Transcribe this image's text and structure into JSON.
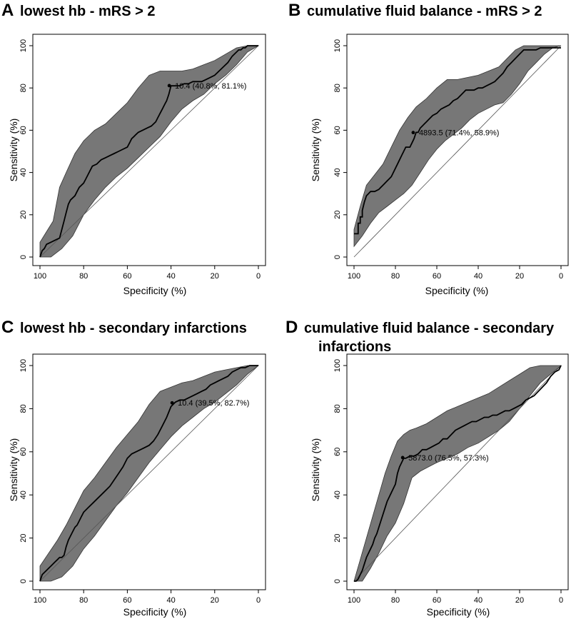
{
  "figure": {
    "panels": [
      {
        "letter": "A",
        "title_lines": [
          "lowest hb - mRS > 2"
        ]
      },
      {
        "letter": "B",
        "title_lines": [
          "cumulative fluid balance - mRS > 2"
        ]
      },
      {
        "letter": "C",
        "title_lines": [
          "lowest hb - secondary infarctions"
        ]
      },
      {
        "letter": "D",
        "title_lines": [
          "cumulative fluid balance - secondary",
          "infarctions"
        ]
      }
    ]
  },
  "chart_data": [
    {
      "type": "line",
      "panel": "A",
      "title": "lowest hb - mRS > 2",
      "xlabel": "Specificity (%)",
      "ylabel": "Sensitivity (%)",
      "xlim": [
        100,
        0
      ],
      "ylim": [
        0,
        100
      ],
      "xticks": [
        100,
        80,
        60,
        40,
        20,
        0
      ],
      "yticks": [
        0,
        20,
        40,
        60,
        80,
        100
      ],
      "grid": false,
      "series": [
        {
          "name": "ROC",
          "x": [
            100,
            99,
            98,
            97,
            95,
            93,
            91,
            90,
            89,
            88,
            87,
            86,
            84,
            83,
            82,
            80,
            79,
            78,
            77,
            76,
            74,
            73,
            72,
            70,
            68,
            66,
            64,
            62,
            60,
            59,
            58,
            57,
            56,
            55,
            53,
            51,
            49,
            47,
            46,
            45,
            44,
            43,
            42,
            41,
            40,
            39,
            38,
            36,
            34,
            32,
            30,
            28,
            26,
            24,
            22,
            20,
            18,
            16,
            14,
            12,
            10,
            9,
            8,
            7,
            6,
            5,
            4,
            3,
            2,
            1,
            0
          ],
          "y": [
            0,
            3,
            4,
            6,
            7,
            8,
            9,
            13,
            17,
            21,
            25,
            27,
            29,
            31,
            33,
            35,
            37,
            39,
            41,
            43,
            44,
            45,
            46,
            47,
            48,
            49,
            50,
            51,
            52,
            54,
            56,
            57,
            58,
            59,
            60,
            61,
            62,
            64,
            66,
            68,
            70,
            72,
            74,
            77,
            81,
            81,
            81,
            81,
            82,
            82,
            83,
            83,
            83,
            84,
            85,
            86,
            88,
            90,
            92,
            95,
            97,
            98,
            98,
            99,
            99,
            100,
            100,
            100,
            100,
            100,
            100
          ]
        },
        {
          "name": "CI upper",
          "x": [
            100,
            97,
            94,
            91,
            88,
            84,
            80,
            75,
            70,
            65,
            60,
            55,
            50,
            45,
            40,
            35,
            30,
            25,
            20,
            15,
            10,
            5,
            0
          ],
          "y": [
            7,
            12,
            17,
            33,
            40,
            49,
            55,
            60,
            63,
            68,
            73,
            80,
            86,
            88,
            88,
            88,
            89,
            91,
            93,
            96,
            99,
            100,
            100
          ]
        },
        {
          "name": "CI lower",
          "x": [
            100,
            95,
            90,
            85,
            80,
            75,
            70,
            65,
            60,
            55,
            50,
            45,
            40,
            35,
            30,
            25,
            20,
            15,
            10,
            5,
            0
          ],
          "y": [
            0,
            0,
            4,
            10,
            20,
            27,
            33,
            38,
            42,
            47,
            52,
            57,
            64,
            70,
            74,
            77,
            82,
            86,
            91,
            97,
            100
          ]
        },
        {
          "name": "chance",
          "x": [
            100,
            0
          ],
          "y": [
            0,
            100
          ]
        }
      ],
      "best_threshold": {
        "specificity": 40.8,
        "sensitivity": 81.1,
        "label": "10.4 (40.8%, 81.1%)"
      }
    },
    {
      "type": "line",
      "panel": "B",
      "title": "cumulative fluid balance - mRS > 2",
      "xlabel": "Specificity (%)",
      "ylabel": "Sensitivity (%)",
      "xlim": [
        100,
        0
      ],
      "ylim": [
        0,
        100
      ],
      "xticks": [
        100,
        80,
        60,
        40,
        20,
        0
      ],
      "yticks": [
        0,
        20,
        40,
        60,
        80,
        100
      ],
      "grid": false,
      "series": [
        {
          "name": "ROC",
          "x": [
            100,
            100,
            98,
            98,
            97,
            97,
            96,
            96,
            95,
            94,
            93,
            92,
            91,
            90,
            88,
            87,
            86,
            85,
            84,
            83,
            82,
            81,
            80,
            79,
            78,
            77,
            76,
            75,
            74,
            73,
            72,
            71,
            70,
            69,
            68,
            67,
            66,
            65,
            64,
            62,
            60,
            58,
            56,
            54,
            52,
            50,
            48,
            46,
            44,
            42,
            40,
            38,
            36,
            34,
            32,
            30,
            28,
            26,
            24,
            22,
            20,
            18,
            16,
            14,
            12,
            10,
            8,
            6,
            4,
            2,
            0
          ],
          "y": [
            11,
            11,
            11,
            16,
            16,
            19,
            19,
            22,
            26,
            29,
            30,
            31,
            31,
            31,
            32,
            33,
            34,
            35,
            36,
            37,
            38,
            40,
            42,
            44,
            46,
            48,
            50,
            52,
            52,
            52,
            54,
            56,
            59,
            59,
            61,
            62,
            63,
            64,
            65,
            67,
            68,
            70,
            71,
            72,
            74,
            75,
            77,
            79,
            79,
            79,
            80,
            80,
            81,
            82,
            83,
            85,
            87,
            90,
            92,
            94,
            96,
            98,
            98,
            98,
            98,
            99,
            99,
            99,
            99,
            99,
            99
          ]
        },
        {
          "name": "CI upper",
          "x": [
            100,
            97,
            94,
            90,
            86,
            82,
            78,
            74,
            70,
            65,
            60,
            55,
            50,
            45,
            40,
            35,
            30,
            25,
            22,
            18,
            14,
            10,
            5,
            0
          ],
          "y": [
            13,
            24,
            34,
            39,
            44,
            52,
            60,
            66,
            71,
            75,
            80,
            84,
            84,
            85,
            86,
            88,
            90,
            95,
            98,
            100,
            100,
            100,
            100,
            100
          ]
        },
        {
          "name": "CI lower",
          "x": [
            100,
            96,
            92,
            88,
            84,
            80,
            76,
            72,
            68,
            64,
            60,
            56,
            52,
            48,
            44,
            40,
            36,
            32,
            28,
            24,
            20,
            16,
            12,
            8,
            4,
            0
          ],
          "y": [
            5,
            10,
            16,
            21,
            24,
            27,
            30,
            34,
            40,
            46,
            51,
            55,
            58,
            61,
            65,
            68,
            70,
            72,
            73,
            77,
            82,
            88,
            92,
            96,
            99,
            100
          ]
        },
        {
          "name": "chance",
          "x": [
            100,
            0
          ],
          "y": [
            0,
            100
          ]
        }
      ],
      "best_threshold": {
        "specificity": 71.4,
        "sensitivity": 58.9,
        "label": "4893.5 (71.4%, 58.9%)"
      }
    },
    {
      "type": "line",
      "panel": "C",
      "title": "lowest hb - secondary infarctions",
      "xlabel": "Specificity (%)",
      "ylabel": "Sensitivity (%)",
      "xlim": [
        100,
        0
      ],
      "ylim": [
        0,
        100
      ],
      "xticks": [
        100,
        80,
        60,
        40,
        20,
        0
      ],
      "yticks": [
        0,
        20,
        40,
        60,
        80,
        100
      ],
      "grid": false,
      "series": [
        {
          "name": "ROC",
          "x": [
            100,
            99,
            98,
            97,
            96,
            95,
            94,
            93,
            92,
            91,
            90,
            89,
            88,
            87,
            86,
            85,
            84,
            83,
            82,
            81,
            80,
            78,
            76,
            74,
            72,
            70,
            68,
            66,
            64,
            62,
            60,
            58,
            56,
            54,
            52,
            50,
            48,
            46,
            44,
            42,
            40,
            38,
            36,
            34,
            32,
            30,
            28,
            26,
            24,
            22,
            20,
            18,
            16,
            14,
            12,
            10,
            8,
            6,
            4,
            2,
            0
          ],
          "y": [
            0,
            3,
            4,
            5,
            6,
            7,
            8,
            9,
            10,
            11,
            11,
            12,
            16,
            19,
            21,
            23,
            25,
            26,
            28,
            30,
            32,
            34,
            36,
            38,
            40,
            42,
            44,
            47,
            50,
            53,
            57,
            59,
            60,
            61,
            62,
            63,
            65,
            68,
            72,
            76,
            81,
            83,
            84,
            84,
            85,
            86,
            87,
            88,
            89,
            91,
            92,
            93,
            94,
            95,
            97,
            98,
            99,
            99,
            100,
            100,
            100
          ]
        },
        {
          "name": "CI upper",
          "x": [
            100,
            96,
            92,
            88,
            84,
            80,
            75,
            70,
            65,
            60,
            55,
            50,
            45,
            40,
            35,
            30,
            25,
            20,
            15,
            10,
            5,
            0
          ],
          "y": [
            7,
            13,
            19,
            26,
            34,
            42,
            48,
            55,
            62,
            68,
            74,
            82,
            88,
            90,
            92,
            93,
            95,
            97,
            98,
            99,
            100,
            100
          ]
        },
        {
          "name": "CI lower",
          "x": [
            100,
            95,
            90,
            85,
            80,
            75,
            70,
            65,
            60,
            55,
            50,
            45,
            40,
            35,
            30,
            25,
            20,
            15,
            10,
            5,
            0
          ],
          "y": [
            0,
            0,
            2,
            7,
            15,
            21,
            28,
            35,
            41,
            48,
            55,
            61,
            67,
            72,
            76,
            80,
            83,
            87,
            91,
            96,
            100
          ]
        },
        {
          "name": "chance",
          "x": [
            100,
            0
          ],
          "y": [
            0,
            100
          ]
        }
      ],
      "best_threshold": {
        "specificity": 39.5,
        "sensitivity": 82.7,
        "label": "10.4 (39.5%, 82.7%)"
      }
    },
    {
      "type": "line",
      "panel": "D",
      "title": "cumulative fluid balance - secondary infarctions",
      "xlabel": "Specificity (%)",
      "ylabel": "Sensitivity (%)",
      "xlim": [
        100,
        0
      ],
      "ylim": [
        0,
        100
      ],
      "xticks": [
        100,
        80,
        60,
        40,
        20,
        0
      ],
      "yticks": [
        0,
        20,
        40,
        60,
        80,
        100
      ],
      "grid": false,
      "series": [
        {
          "name": "ROC",
          "x": [
            100,
            99,
            98,
            97,
            96,
            95,
            94,
            93,
            92,
            91,
            90,
            89,
            88,
            87,
            86,
            85,
            84,
            83,
            82,
            81,
            80,
            79,
            78,
            77,
            76,
            75,
            73,
            71,
            69,
            67,
            65,
            63,
            61,
            59,
            57,
            55,
            53,
            51,
            49,
            47,
            45,
            43,
            41,
            39,
            37,
            35,
            33,
            31,
            29,
            27,
            25,
            23,
            21,
            19,
            17,
            15,
            13,
            11,
            9,
            7,
            5,
            3,
            1,
            0
          ],
          "y": [
            0,
            0,
            1,
            3,
            5,
            8,
            11,
            13,
            15,
            17,
            20,
            22,
            25,
            28,
            31,
            34,
            37,
            39,
            41,
            43,
            45,
            50,
            53,
            55,
            57,
            57,
            58,
            58,
            59,
            61,
            61,
            62,
            63,
            64,
            66,
            66,
            68,
            70,
            71,
            72,
            73,
            74,
            74,
            75,
            76,
            76,
            77,
            77,
            78,
            79,
            79,
            80,
            81,
            82,
            84,
            85,
            86,
            88,
            90,
            92,
            95,
            97,
            98,
            100
          ]
        },
        {
          "name": "CI upper",
          "x": [
            100,
            97,
            94,
            91,
            88,
            85,
            82,
            79,
            76,
            73,
            70,
            65,
            60,
            55,
            50,
            45,
            40,
            35,
            30,
            25,
            20,
            15,
            10,
            5,
            0
          ],
          "y": [
            0,
            10,
            20,
            30,
            40,
            50,
            58,
            65,
            68,
            70,
            71,
            73,
            76,
            79,
            81,
            83,
            85,
            87,
            90,
            93,
            96,
            99,
            100,
            100,
            100
          ]
        },
        {
          "name": "CI lower",
          "x": [
            100,
            96,
            92,
            88,
            84,
            80,
            76,
            72,
            68,
            64,
            60,
            55,
            50,
            45,
            40,
            35,
            30,
            25,
            20,
            15,
            10,
            5,
            0
          ],
          "y": [
            0,
            0,
            6,
            13,
            21,
            27,
            36,
            48,
            51,
            53,
            55,
            57,
            59,
            62,
            64,
            67,
            70,
            74,
            80,
            86,
            92,
            96,
            100
          ]
        },
        {
          "name": "chance",
          "x": [
            100,
            0
          ],
          "y": [
            0,
            100
          ]
        }
      ],
      "best_threshold": {
        "specificity": 76.5,
        "sensitivity": 57.3,
        "label": "5873.0 (76.5%, 57.3%)"
      }
    }
  ]
}
